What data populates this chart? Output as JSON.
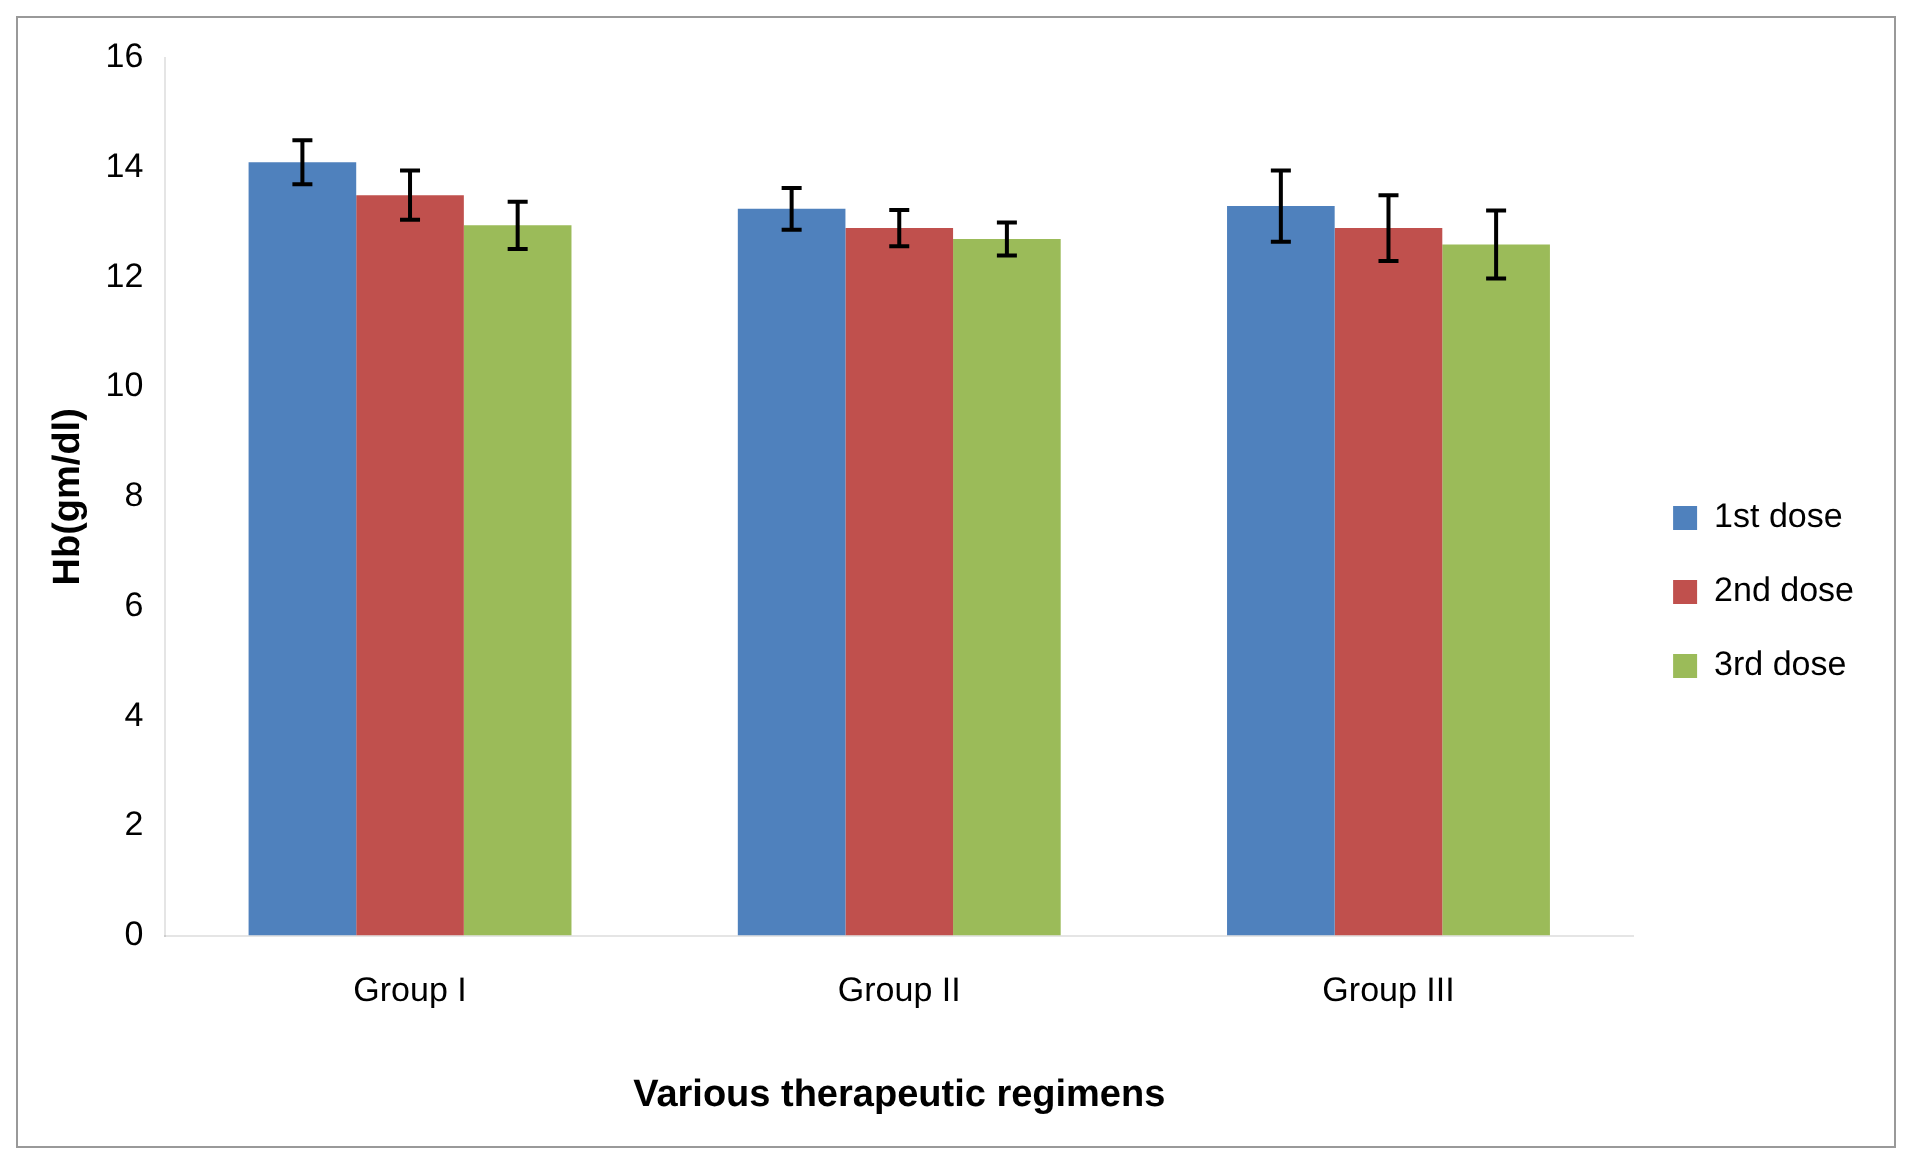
{
  "chart_data": {
    "type": "bar",
    "xlabel": "Various therapeutic regimens",
    "ylabel": "Hb(gm/dl)",
    "categories": [
      "Group I",
      "Group II",
      "Group III"
    ],
    "series": [
      {
        "name": "1st dose",
        "color": "#4f81bd",
        "values": [
          14.1,
          13.25,
          13.3
        ],
        "errors": [
          0.4,
          0.38,
          0.65
        ]
      },
      {
        "name": "2nd dose",
        "color": "#c0504d",
        "values": [
          13.5,
          12.9,
          12.9
        ],
        "errors": [
          0.45,
          0.33,
          0.6
        ]
      },
      {
        "name": "3rd dose",
        "color": "#9bbb59",
        "values": [
          12.95,
          12.7,
          12.6
        ],
        "errors": [
          0.43,
          0.3,
          0.62
        ]
      }
    ],
    "ylim": [
      0,
      16
    ],
    "yticks": [
      0,
      2,
      4,
      6,
      8,
      10,
      12,
      14,
      16
    ],
    "grid": false,
    "legend": "right"
  }
}
